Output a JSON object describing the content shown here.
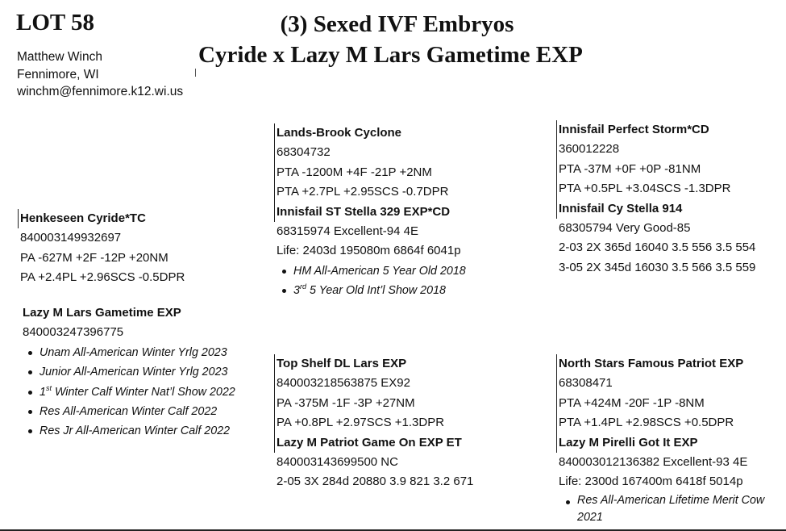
{
  "header": {
    "lot": "LOT 58",
    "title_line1": "(3) Sexed IVF Embryos",
    "title_line2": "Cyride x Lazy M Lars Gametime EXP"
  },
  "consignor": {
    "name": "Matthew Winch",
    "location": "Fennimore, WI",
    "email": "winchm@fennimore.k12.wi.us"
  },
  "sire": {
    "name": "Henkeseen Cyride*TC",
    "reg": "840003149932697",
    "line1": "PA -627M +2F -12P +20NM",
    "line2": "PA +2.4PL +2.96SCS -0.5DPR"
  },
  "sire_sire": {
    "name": "Lands-Brook Cyclone",
    "reg": "68304732",
    "line1": "PTA -1200M +4F -21P +2NM",
    "line2": "PTA +2.7PL +2.95SCS -0.7DPR"
  },
  "sire_dam": {
    "name": "Innisfail ST Stella 329 EXP*CD",
    "reg": "68315974 Excellent-94 4E",
    "life": "Life: 2403d 195080m 6864f 6041p",
    "honor1": "HM All-American 5 Year Old 2018",
    "honor2_num": "3",
    "honor2_sup": "rd",
    "honor2_rest": " 5 Year Old Int’l Show 2018"
  },
  "ssd_sire": {
    "name": "Innisfail Perfect Storm*CD",
    "reg": "360012228",
    "line1": "PTA -37M +0F +0P -81NM",
    "line2": "PTA +0.5PL +3.04SCS -1.3DPR"
  },
  "ssd_dam": {
    "name": "Innisfail Cy Stella 914",
    "reg": "68305794 Very Good-85",
    "rec1": "2-03 2X 365d 16040 3.5 556 3.5 554",
    "rec2": "3-05 2X 345d 16030 3.5 566 3.5 559"
  },
  "dam": {
    "name": "Lazy M Lars Gametime EXP",
    "reg": "840003247396775",
    "honor1": "Unam All-American Winter Yrlg 2023",
    "honor2": "Junior All-American Winter Yrlg 2023",
    "honor3_num": "1",
    "honor3_sup": "st",
    "honor3_rest": " Winter Calf Winter Nat’l Show 2022",
    "honor4": "Res All-American Winter Calf 2022",
    "honor5": "Res Jr All-American Winter Calf 2022"
  },
  "dam_sire": {
    "name": "Top Shelf DL Lars EXP",
    "reg": "840003218563875 EX92",
    "line1": "PA -375M -1F -3P +27NM",
    "line2": "PA +0.8PL +2.97SCS +1.3DPR"
  },
  "dam_dam": {
    "name": "Lazy M Patriot Game On EXP ET",
    "reg": "840003143699500 NC",
    "rec1": "2-05 3X 284d 20880 3.9 821 3.2 671"
  },
  "dd_sire": {
    "name": "North Stars Famous Patriot EXP",
    "reg": "68308471",
    "line1": "PTA +424M -20F -1P -8NM",
    "line2": "PTA +1.4PL +2.98SCS +0.5DPR"
  },
  "dd_dam": {
    "name": "Lazy M Pirelli Got It EXP",
    "reg": "840003012136382 Excellent-93 4E",
    "life": "Life: 2300d 167400m 6418f 5014p",
    "honor1": "Res All-American Lifetime Merit Cow 2021"
  }
}
